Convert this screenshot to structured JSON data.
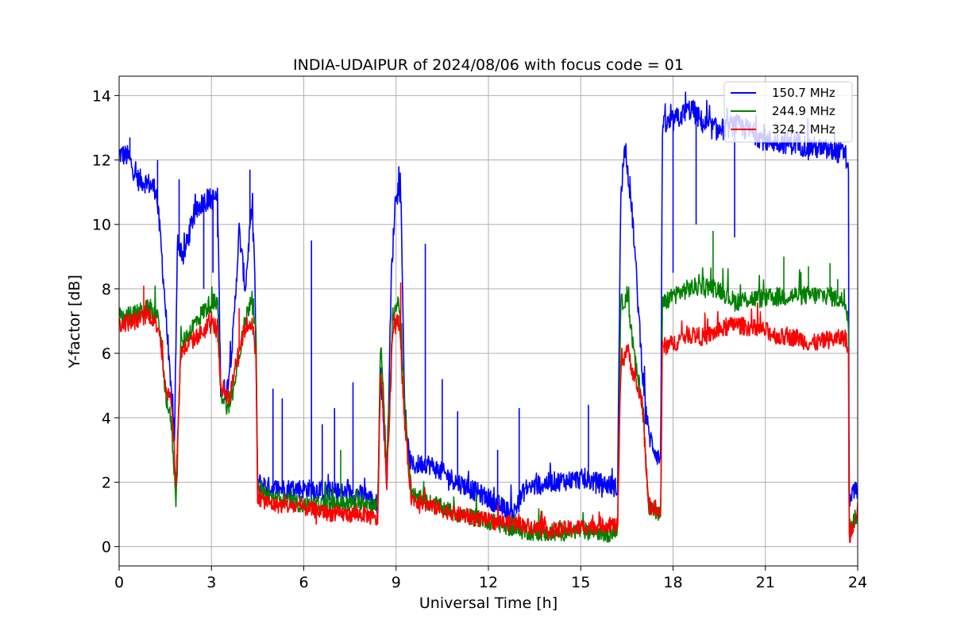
{
  "chart_data": {
    "type": "line",
    "title": "INDIA-UDAIPUR of 2024/08/06 with focus code = 01",
    "xlabel": "Universal Time [h]",
    "ylabel": "Y-factor [dB]",
    "xlim": [
      0,
      24
    ],
    "ylim": [
      -0.6,
      14.6
    ],
    "xticks": [
      0,
      3,
      6,
      9,
      12,
      15,
      18,
      21,
      24
    ],
    "yticks": [
      0,
      2,
      4,
      6,
      8,
      10,
      12,
      14
    ],
    "grid": true,
    "legend_position": "top-right",
    "series": [
      {
        "name": "150.7 MHz",
        "color": "#0000ff",
        "noise": 0.35,
        "points": [
          [
            0,
            12.2
          ],
          [
            0.3,
            12.1
          ],
          [
            0.6,
            11.4
          ],
          [
            0.9,
            11.3
          ],
          [
            1.2,
            11.1
          ],
          [
            1.35,
            9.5
          ],
          [
            1.5,
            7.5
          ],
          [
            1.65,
            5.2
          ],
          [
            1.8,
            3.5
          ],
          [
            1.9,
            9.5
          ],
          [
            2.1,
            9.0
          ],
          [
            2.4,
            10.2
          ],
          [
            2.7,
            10.7
          ],
          [
            3.0,
            10.8
          ],
          [
            3.2,
            10.8
          ],
          [
            3.3,
            5.0
          ],
          [
            3.5,
            4.8
          ],
          [
            3.7,
            6.5
          ],
          [
            3.9,
            9.8
          ],
          [
            4.1,
            8.0
          ],
          [
            4.3,
            10.5
          ],
          [
            4.4,
            9.0
          ],
          [
            4.5,
            2.0
          ],
          [
            5.0,
            1.8
          ],
          [
            6.0,
            1.8
          ],
          [
            7.0,
            1.7
          ],
          [
            8.0,
            1.6
          ],
          [
            8.4,
            1.3
          ],
          [
            8.5,
            5.5
          ],
          [
            8.7,
            2.0
          ],
          [
            8.85,
            8.5
          ],
          [
            9.0,
            11.2
          ],
          [
            9.15,
            11.0
          ],
          [
            9.3,
            3.5
          ],
          [
            9.5,
            2.5
          ],
          [
            10.0,
            2.6
          ],
          [
            11.0,
            2.0
          ],
          [
            12.0,
            1.5
          ],
          [
            12.8,
            1.0
          ],
          [
            13.2,
            1.8
          ],
          [
            14.0,
            2.0
          ],
          [
            15.0,
            2.1
          ],
          [
            16.0,
            1.9
          ],
          [
            16.2,
            1.8
          ],
          [
            16.3,
            11.0
          ],
          [
            16.45,
            12.5
          ],
          [
            16.7,
            10.0
          ],
          [
            17.0,
            5.5
          ],
          [
            17.2,
            3.5
          ],
          [
            17.5,
            2.8
          ],
          [
            17.6,
            2.7
          ],
          [
            17.65,
            13.0
          ],
          [
            18.0,
            13.2
          ],
          [
            18.6,
            13.6
          ],
          [
            19.0,
            13.1
          ],
          [
            19.5,
            12.9
          ],
          [
            20.0,
            13.1
          ],
          [
            20.5,
            12.9
          ],
          [
            21.0,
            12.6
          ],
          [
            22.0,
            12.5
          ],
          [
            23.0,
            12.3
          ],
          [
            23.6,
            12.2
          ],
          [
            23.7,
            11.5
          ],
          [
            23.72,
            1.5
          ],
          [
            24.0,
            1.8
          ]
        ]
      },
      {
        "name": "244.9 MHz",
        "color": "#008000",
        "noise": 0.3,
        "points": [
          [
            0,
            7.1
          ],
          [
            0.5,
            7.2
          ],
          [
            1.0,
            7.4
          ],
          [
            1.3,
            7.0
          ],
          [
            1.5,
            4.8
          ],
          [
            1.7,
            3.8
          ],
          [
            1.85,
            1.4
          ],
          [
            2.0,
            6.2
          ],
          [
            2.5,
            7.0
          ],
          [
            3.0,
            7.6
          ],
          [
            3.2,
            7.5
          ],
          [
            3.3,
            4.8
          ],
          [
            3.6,
            4.2
          ],
          [
            3.8,
            5.5
          ],
          [
            4.1,
            7.0
          ],
          [
            4.3,
            7.8
          ],
          [
            4.45,
            6.5
          ],
          [
            4.5,
            1.8
          ],
          [
            5.0,
            1.5
          ],
          [
            6.0,
            1.3
          ],
          [
            7.0,
            1.3
          ],
          [
            8.0,
            1.4
          ],
          [
            8.4,
            1.2
          ],
          [
            8.5,
            6.5
          ],
          [
            8.7,
            2.5
          ],
          [
            8.9,
            7.3
          ],
          [
            9.1,
            7.6
          ],
          [
            9.3,
            4.0
          ],
          [
            9.5,
            1.6
          ],
          [
            10.0,
            1.4
          ],
          [
            11.0,
            1.0
          ],
          [
            12.0,
            0.8
          ],
          [
            13.0,
            0.5
          ],
          [
            14.0,
            0.4
          ],
          [
            15.0,
            0.5
          ],
          [
            16.0,
            0.4
          ],
          [
            16.2,
            0.6
          ],
          [
            16.3,
            7.5
          ],
          [
            16.5,
            7.8
          ],
          [
            16.8,
            5.5
          ],
          [
            17.0,
            4.5
          ],
          [
            17.2,
            1.3
          ],
          [
            17.5,
            1.0
          ],
          [
            17.6,
            1.0
          ],
          [
            17.65,
            7.5
          ],
          [
            18.0,
            7.8
          ],
          [
            18.5,
            8.0
          ],
          [
            19.0,
            8.1
          ],
          [
            19.5,
            8.0
          ],
          [
            20.0,
            7.6
          ],
          [
            20.5,
            7.7
          ],
          [
            21.0,
            7.7
          ],
          [
            22.0,
            7.8
          ],
          [
            23.0,
            7.8
          ],
          [
            23.6,
            7.6
          ],
          [
            23.7,
            7.0
          ],
          [
            23.72,
            0.6
          ],
          [
            24.0,
            1.0
          ]
        ]
      },
      {
        "name": "324.2 MHz",
        "color": "#ff0000",
        "noise": 0.28,
        "points": [
          [
            0,
            6.9
          ],
          [
            0.5,
            7.0
          ],
          [
            1.0,
            7.2
          ],
          [
            1.3,
            6.8
          ],
          [
            1.5,
            5.0
          ],
          [
            1.7,
            4.5
          ],
          [
            1.85,
            2.0
          ],
          [
            2.0,
            6.0
          ],
          [
            2.5,
            6.5
          ],
          [
            3.0,
            6.9
          ],
          [
            3.2,
            6.8
          ],
          [
            3.3,
            5.0
          ],
          [
            3.6,
            4.6
          ],
          [
            3.8,
            5.8
          ],
          [
            4.1,
            6.8
          ],
          [
            4.3,
            7.0
          ],
          [
            4.45,
            6.0
          ],
          [
            4.5,
            1.5
          ],
          [
            5.0,
            1.3
          ],
          [
            6.0,
            1.2
          ],
          [
            7.0,
            1.0
          ],
          [
            8.0,
            1.0
          ],
          [
            8.4,
            0.8
          ],
          [
            8.5,
            5.5
          ],
          [
            8.7,
            2.0
          ],
          [
            8.9,
            6.8
          ],
          [
            9.1,
            7.0
          ],
          [
            9.3,
            3.5
          ],
          [
            9.5,
            1.5
          ],
          [
            10.0,
            1.3
          ],
          [
            11.0,
            1.0
          ],
          [
            12.0,
            0.8
          ],
          [
            13.0,
            0.7
          ],
          [
            14.0,
            0.5
          ],
          [
            15.0,
            0.6
          ],
          [
            16.0,
            0.7
          ],
          [
            16.2,
            0.6
          ],
          [
            16.3,
            5.5
          ],
          [
            16.5,
            6.2
          ],
          [
            16.8,
            5.0
          ],
          [
            17.0,
            4.5
          ],
          [
            17.2,
            1.3
          ],
          [
            17.5,
            1.1
          ],
          [
            17.6,
            1.0
          ],
          [
            17.65,
            6.2
          ],
          [
            18.0,
            6.3
          ],
          [
            18.5,
            6.6
          ],
          [
            19.0,
            6.5
          ],
          [
            19.5,
            6.7
          ],
          [
            20.0,
            6.9
          ],
          [
            20.5,
            6.8
          ],
          [
            21.0,
            6.7
          ],
          [
            21.5,
            6.5
          ],
          [
            22.0,
            6.5
          ],
          [
            22.5,
            6.3
          ],
          [
            23.0,
            6.4
          ],
          [
            23.6,
            6.5
          ],
          [
            23.7,
            6.0
          ],
          [
            23.72,
            0.2
          ],
          [
            24.0,
            1.2
          ]
        ]
      }
    ],
    "spikes": [
      [
        0,
        0.35,
        12.7
      ],
      [
        0,
        1.25,
        12.0
      ],
      [
        0,
        1.95,
        11.4
      ],
      [
        0,
        2.7,
        10.9
      ],
      [
        0,
        2.75,
        8.0
      ],
      [
        0,
        3.05,
        8.5
      ],
      [
        0,
        3.2,
        9.6
      ],
      [
        0,
        4.25,
        11.7
      ],
      [
        0,
        5.0,
        4.9
      ],
      [
        0,
        5.3,
        4.6
      ],
      [
        0,
        6.25,
        9.5
      ],
      [
        0,
        6.6,
        3.8
      ],
      [
        0,
        7.0,
        4.3
      ],
      [
        0,
        7.6,
        5.1
      ],
      [
        0,
        9.95,
        9.4
      ],
      [
        0,
        10.5,
        5.2
      ],
      [
        0,
        11.0,
        4.2
      ],
      [
        0,
        12.3,
        3.0
      ],
      [
        0,
        13.0,
        4.3
      ],
      [
        0,
        15.25,
        4.4
      ],
      [
        0,
        16.6,
        11.5
      ],
      [
        0,
        17.1,
        3.8
      ],
      [
        0,
        18.0,
        8.5
      ],
      [
        0,
        18.35,
        13.3
      ],
      [
        0,
        18.75,
        10.0
      ],
      [
        0,
        20.0,
        9.6
      ],
      [
        1,
        19.3,
        9.8
      ],
      [
        1,
        21.6,
        9.0
      ],
      [
        1,
        22.4,
        8.7
      ],
      [
        1,
        23.1,
        8.8
      ],
      [
        1,
        23.35,
        8.3
      ],
      [
        1,
        7.2,
        3.0
      ],
      [
        2,
        9.15,
        8.2
      ],
      [
        2,
        0.8,
        8.1
      ],
      [
        2,
        3.9,
        7.4
      ],
      [
        2,
        20.0,
        7.1
      ]
    ],
    "legend": [
      "150.7 MHz",
      "244.9 MHz",
      "324.2 MHz"
    ]
  }
}
